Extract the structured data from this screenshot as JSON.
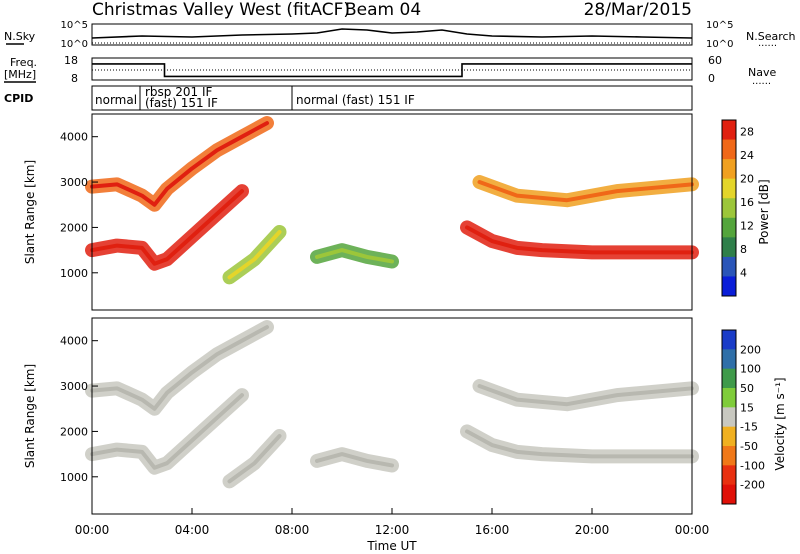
{
  "header": {
    "title": "Christmas Valley West (fitACF)",
    "beam": "Beam 04",
    "date": "28/Mar/2015"
  },
  "labels": {
    "nsky": "N.Sky",
    "nsearch": "N.Search",
    "freq_line1": "Freq.",
    "freq_line2": "[MHz]",
    "nave": "Nave",
    "cpid": "CPID",
    "nsky_top": "10^5",
    "nsky_bottom": "10^0",
    "freq_top": "18",
    "freq_bottom": "8",
    "nave_top": "60",
    "nave_bottom": "0",
    "dots": "......"
  },
  "cpid_segments": [
    {
      "label": "normal",
      "start_hour": 0.0
    },
    {
      "label": "rbsp 201 IF",
      "start_hour": 2.0
    },
    {
      "label": "(fast) 151 IF",
      "start_hour": 2.0
    },
    {
      "label": "normal (fast) 151 IF",
      "start_hour": 8.0
    }
  ],
  "chart_data": [
    {
      "type": "heatmap",
      "panel": "power",
      "ylabel": "Slant Range [km]",
      "xlabel": "",
      "xlim": [
        0,
        24
      ],
      "ylim": [
        180,
        4500
      ],
      "yticks": [
        1000,
        2000,
        3000,
        4000
      ],
      "colorbar": {
        "label": "Power [dB]",
        "ticks": [
          "4",
          "8",
          "12",
          "16",
          "20",
          "24",
          "28"
        ],
        "range": [
          0,
          30
        ],
        "colors": [
          "#0a1ed8",
          "#2a55b8",
          "#2f7f4a",
          "#54a53c",
          "#9cc63a",
          "#e4d52a",
          "#f0a020",
          "#f06818",
          "#e02010"
        ]
      },
      "bands": [
        {
          "name": "",
          "hours": [
            0,
            1,
            2,
            2.5,
            3,
            4,
            5,
            6,
            7
          ],
          "ranges": [
            2900,
            2950,
            2700,
            2500,
            2850,
            3300,
            3700,
            4000,
            4300
          ],
          "db": 24
        },
        {
          "name": "",
          "hours": [
            0,
            1,
            2,
            2.5,
            3,
            4,
            5,
            6
          ],
          "ranges": [
            1500,
            1600,
            1550,
            1200,
            1300,
            1800,
            2300,
            2800
          ],
          "db": 28
        },
        {
          "name": "",
          "hours": [
            5.5,
            6.5,
            7.5
          ],
          "ranges": [
            900,
            1300,
            1900
          ],
          "db": 14
        },
        {
          "name": "",
          "hours": [
            9,
            10,
            11,
            12
          ],
          "ranges": [
            1350,
            1500,
            1350,
            1250
          ],
          "db": 12
        },
        {
          "name": "",
          "hours": [
            15,
            16,
            17,
            18,
            20,
            22,
            24
          ],
          "ranges": [
            2000,
            1700,
            1550,
            1500,
            1450,
            1450,
            1450
          ],
          "db": 28
        },
        {
          "name": "",
          "hours": [
            15.5,
            17,
            19,
            21,
            24
          ],
          "ranges": [
            3000,
            2700,
            2600,
            2800,
            2950
          ],
          "db": 22
        }
      ]
    },
    {
      "type": "heatmap",
      "panel": "velocity",
      "ylabel": "Slant Range [km]",
      "xlabel": "Time UT",
      "xlim": [
        0,
        24
      ],
      "ylim": [
        180,
        4500
      ],
      "xticks": [
        "00:00",
        "04:00",
        "08:00",
        "12:00",
        "16:00",
        "20:00",
        "00:00"
      ],
      "yticks": [
        1000,
        2000,
        3000,
        4000
      ],
      "colorbar": {
        "label": "Velocity [m s⁻¹]",
        "ticks": [
          "200",
          "100",
          "50",
          "15",
          "-15",
          "-50",
          "-100",
          "-200"
        ],
        "colors": [
          "#1a3cc8",
          "#2f6fa8",
          "#3f9a4a",
          "#7fcc3a",
          "#c8c8c0",
          "#f0b020",
          "#f07818",
          "#e83010",
          "#e01008"
        ]
      }
    },
    {
      "type": "line",
      "panel": "nsky",
      "x": [
        0,
        2,
        4,
        6,
        8,
        9,
        10,
        11,
        12,
        13,
        14,
        15,
        16,
        18,
        20,
        22,
        24
      ],
      "values": [
        0.3,
        0.4,
        0.35,
        0.45,
        0.5,
        0.55,
        0.75,
        0.7,
        0.55,
        0.6,
        0.7,
        0.5,
        0.4,
        0.35,
        0.4,
        0.35,
        0.3
      ]
    },
    {
      "type": "line",
      "panel": "freq",
      "x": [
        0,
        2.9,
        2.9,
        14.8,
        14.8,
        24
      ],
      "values": [
        15.3,
        15.3,
        9.6,
        9.6,
        15.3,
        15.3
      ]
    }
  ]
}
